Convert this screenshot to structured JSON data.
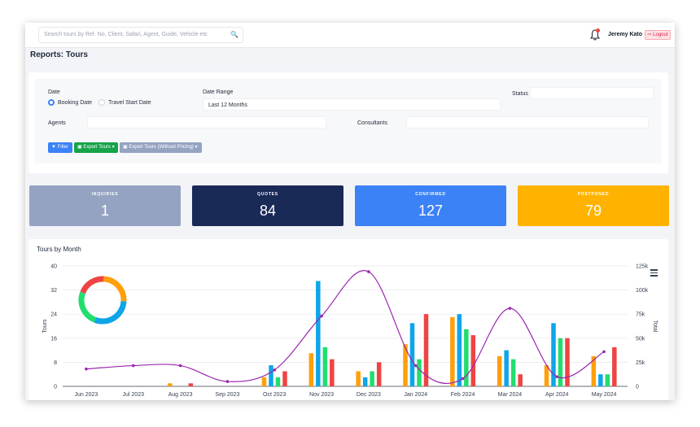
{
  "search": {
    "placeholder": "Search tours by Ref. No, Client, Safari, Agent, Guide, Vehicle etc"
  },
  "header": {
    "user_name": "Jeremy Kato",
    "logout_label": "Logout"
  },
  "page": {
    "title": "Reports: Tours"
  },
  "filters": {
    "date_label": "Date",
    "booking_date_label": "Booking Date",
    "travel_start_label": "Travel Start Date",
    "date_range_label": "Date Range",
    "date_range_value": "Last 12 Months",
    "status_label": "Status",
    "agents_label": "Agents",
    "consultants_label": "Consultants",
    "filter_button": "Filter",
    "export_button": "Export Tours",
    "export_no_pricing_button": "Export Tours (Without Pricing)"
  },
  "stats": [
    {
      "label": "INQUIRIES",
      "value": "1",
      "color": "#94a3c2"
    },
    {
      "label": "QUOTES",
      "value": "84",
      "color": "#1a2a57"
    },
    {
      "label": "CONFIRMED",
      "value": "127",
      "color": "#3b82f6"
    },
    {
      "label": "POSTPONED",
      "value": "79",
      "color": "#ffb300"
    }
  ],
  "chart": {
    "title": "Tours by Month"
  },
  "chart_data": {
    "type": "bar",
    "title": "Tours by Month",
    "categories": [
      "Jun 2023",
      "Jul 2023",
      "Aug 2023",
      "Sep 2023",
      "Oct 2023",
      "Nov 2023",
      "Dec 2023",
      "Jan 2024",
      "Feb 2024",
      "Mar 2024",
      "Apr 2024",
      "May 2024"
    ],
    "ylabel": "Tours",
    "ylabel_right": "Total",
    "ylim": [
      0,
      40
    ],
    "yticks": [
      0,
      8,
      16,
      24,
      32,
      40
    ],
    "ylim_right": [
      0,
      125000
    ],
    "yticks_right": [
      "0",
      "25k",
      "50k",
      "75k",
      "100k",
      "125k"
    ],
    "grid": true,
    "series": [
      {
        "color": "#ff9f0a",
        "values": [
          0,
          0,
          1,
          0,
          3,
          11,
          5,
          14,
          23,
          10,
          7,
          10
        ]
      },
      {
        "color": "#0ea5e9",
        "values": [
          0,
          0,
          0,
          0,
          7,
          35,
          3,
          21,
          24,
          12,
          21,
          4
        ]
      },
      {
        "color": "#22dd6f",
        "values": [
          0,
          0,
          0,
          0,
          3,
          13,
          5,
          9,
          19,
          9,
          16,
          4
        ]
      },
      {
        "color": "#ef4444",
        "values": [
          0,
          0,
          1,
          0,
          5,
          9,
          8,
          24,
          17,
          4,
          16,
          13
        ]
      }
    ],
    "line": {
      "color": "#9b27b0",
      "values": [
        18000,
        21500,
        21500,
        5000,
        17000,
        73000,
        119000,
        21500,
        8000,
        81000,
        10000,
        36000
      ]
    },
    "pie": {
      "values": [
        25,
        30,
        25,
        20
      ],
      "colors": [
        "#ff9f0a",
        "#0ea5e9",
        "#22dd6f",
        "#ef4444"
      ]
    }
  }
}
